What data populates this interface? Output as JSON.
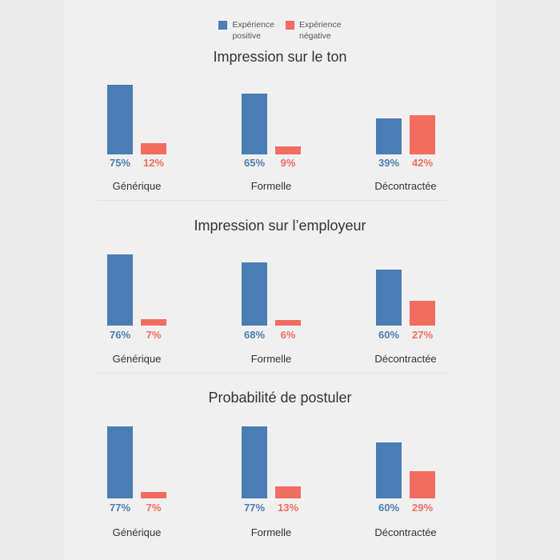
{
  "chart_data": {
    "type": "bar",
    "legend": {
      "placement": "top-center",
      "entries": [
        "Expérience positive",
        "Expérience négative"
      ]
    },
    "legend_lines": [
      [
        "Expérience",
        "positive"
      ],
      [
        "Expérience",
        "négative"
      ]
    ],
    "colors": {
      "positive": "#4a7db3",
      "negative": "#f26d60"
    },
    "categories": [
      "Générique",
      "Formelle",
      "Décontractée"
    ],
    "panels": [
      {
        "title": "Impression sur le ton",
        "series": [
          {
            "name": "Expérience positive",
            "values": [
              75,
              65,
              39
            ]
          },
          {
            "name": "Expérience négative",
            "values": [
              12,
              9,
              42
            ]
          }
        ]
      },
      {
        "title": "Impression sur l’employeur",
        "series": [
          {
            "name": "Expérience positive",
            "values": [
              76,
              68,
              60
            ]
          },
          {
            "name": "Expérience négative",
            "values": [
              7,
              6,
              27
            ]
          }
        ]
      },
      {
        "title": "Probabilité de postuler",
        "series": [
          {
            "name": "Expérience positive",
            "values": [
              77,
              77,
              60
            ]
          },
          {
            "name": "Expérience négative",
            "values": [
              7,
              13,
              29
            ]
          }
        ]
      }
    ],
    "unit": "%",
    "ylim": [
      0,
      100
    ],
    "grid": false
  }
}
